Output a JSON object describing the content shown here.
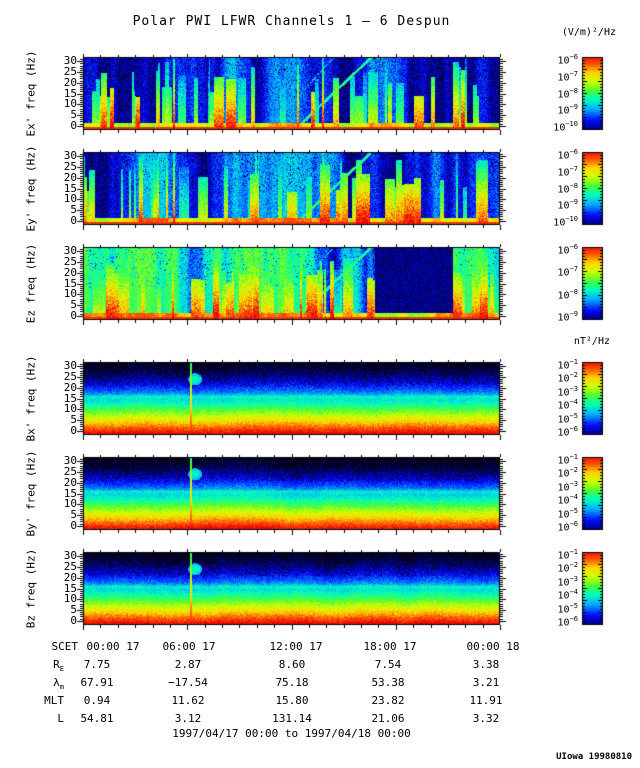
{
  "title": "Polar PWI LFWR Channels 1 — 6 Despun",
  "units": {
    "electric": "(V/m)²/Hz",
    "magnetic": "nT²/Hz"
  },
  "footer": "1997/04/17 00:00 to 1997/04/18 00:00",
  "credit": "UIowa 19980810",
  "chart_data": {
    "type": "heatmap",
    "subtype": "spectrogram-stack",
    "grid": false,
    "time_axis": {
      "label": "SCET",
      "start": "1997/04/17 00:00",
      "end": "1997/04/18 00:00",
      "major_ticks": [
        "00:00 17",
        "06:00 17",
        "12:00 17",
        "18:00 17",
        "00:00 18"
      ],
      "major_tick_hours": [
        0,
        6,
        12,
        18,
        24
      ],
      "minor_tick_hours": 1
    },
    "freq_axis": {
      "unit": "Hz",
      "ticks": [
        0,
        5,
        10,
        15,
        20,
        25,
        30
      ],
      "range": [
        0,
        31
      ]
    },
    "panels": [
      {
        "id": "ex",
        "ylabel": "Ex' freq (Hz)",
        "quantity": "electric",
        "colorbar_unit": "(V/m)²/Hz",
        "colorbar_exponents": [
          "−6",
          "−7",
          "−8",
          "−9",
          "−10"
        ],
        "kind": "E",
        "bursts": 46,
        "bg": 0.3,
        "dark_block": null,
        "diagonal": true,
        "red_lines": [
          0.216,
          0.573
        ],
        "seed": 101,
        "description": "blue noisy background, intermittent broadband vertical bursts, red band near 0-2 Hz, rising diagonal tone 12:00-17:00"
      },
      {
        "id": "ey",
        "ylabel": "Ey' freq (Hz)",
        "quantity": "electric",
        "colorbar_unit": "(V/m)²/Hz",
        "colorbar_exponents": [
          "−6",
          "−7",
          "−8",
          "−9",
          "−10"
        ],
        "kind": "E",
        "bursts": 46,
        "bg": 0.3,
        "dark_block": null,
        "diagonal": true,
        "red_lines": [
          0.216,
          0.573
        ],
        "seed": 202,
        "description": "similar to Ex' with strong red burst near right edge"
      },
      {
        "id": "ez",
        "ylabel": "Ez freq (Hz)",
        "quantity": "electric",
        "colorbar_unit": "(V/m)²/Hz",
        "colorbar_exponents": [
          "−6",
          "−7",
          "−8",
          "−9"
        ],
        "kind": "E",
        "bursts": 85,
        "bg": 0.5,
        "dark_block": [
          0.7,
          0.885
        ],
        "diagonal": true,
        "red_lines": [
          0.214,
          0.52
        ],
        "seed": 303,
        "description": "intense broadband activity, dense green/red bursts, dark quiet block ~17:00-21:00, strong red base"
      },
      {
        "id": "bx",
        "ylabel": "Bx' freq (Hz)",
        "quantity": "magnetic",
        "colorbar_unit": "nT²/Hz",
        "colorbar_exponents": [
          "−1",
          "−2",
          "−3",
          "−4",
          "−5",
          "−6"
        ],
        "kind": "B",
        "vline": 0.258,
        "blob": true,
        "seed": 404,
        "description": "smooth falling spectrum: red at low freq grading to blue/black at 30 Hz, narrow cyan band near 15 Hz, burst near 06:00"
      },
      {
        "id": "by",
        "ylabel": "By' freq (Hz)",
        "quantity": "magnetic",
        "colorbar_unit": "nT²/Hz",
        "colorbar_exponents": [
          "−1",
          "−2",
          "−3",
          "−4",
          "−5",
          "−6"
        ],
        "kind": "B",
        "vline": 0.258,
        "blob": true,
        "seed": 505,
        "description": "same character as Bx'"
      },
      {
        "id": "bz",
        "ylabel": "Bz freq (Hz)",
        "quantity": "magnetic",
        "colorbar_unit": "nT²/Hz",
        "colorbar_exponents": [
          "−1",
          "−2",
          "−3",
          "−4",
          "−5",
          "−6"
        ],
        "kind": "B",
        "vline": 0.258,
        "blob": true,
        "seed": 606,
        "description": "same character as Bx'"
      }
    ],
    "ephemeris": {
      "row_labels": [
        {
          "main": "SCET",
          "sub": ""
        },
        {
          "main": "R",
          "sub": "E"
        },
        {
          "main": "λ",
          "sub": "m"
        },
        {
          "main": "MLT",
          "sub": ""
        },
        {
          "main": "L",
          "sub": ""
        }
      ],
      "rows": [
        [
          "00:00 17",
          "06:00 17",
          "12:00 17",
          "18:00 17",
          "00:00 18"
        ],
        [
          "7.75",
          "2.87",
          "8.60",
          "7.54",
          "3.38"
        ],
        [
          "67.91",
          "−17.54",
          "75.18",
          "53.38",
          "3.21"
        ],
        [
          "0.94",
          "11.62",
          "15.80",
          "23.82",
          "11.91"
        ],
        [
          "54.81",
          "3.12",
          "131.14",
          "21.06",
          "3.32"
        ]
      ]
    }
  }
}
